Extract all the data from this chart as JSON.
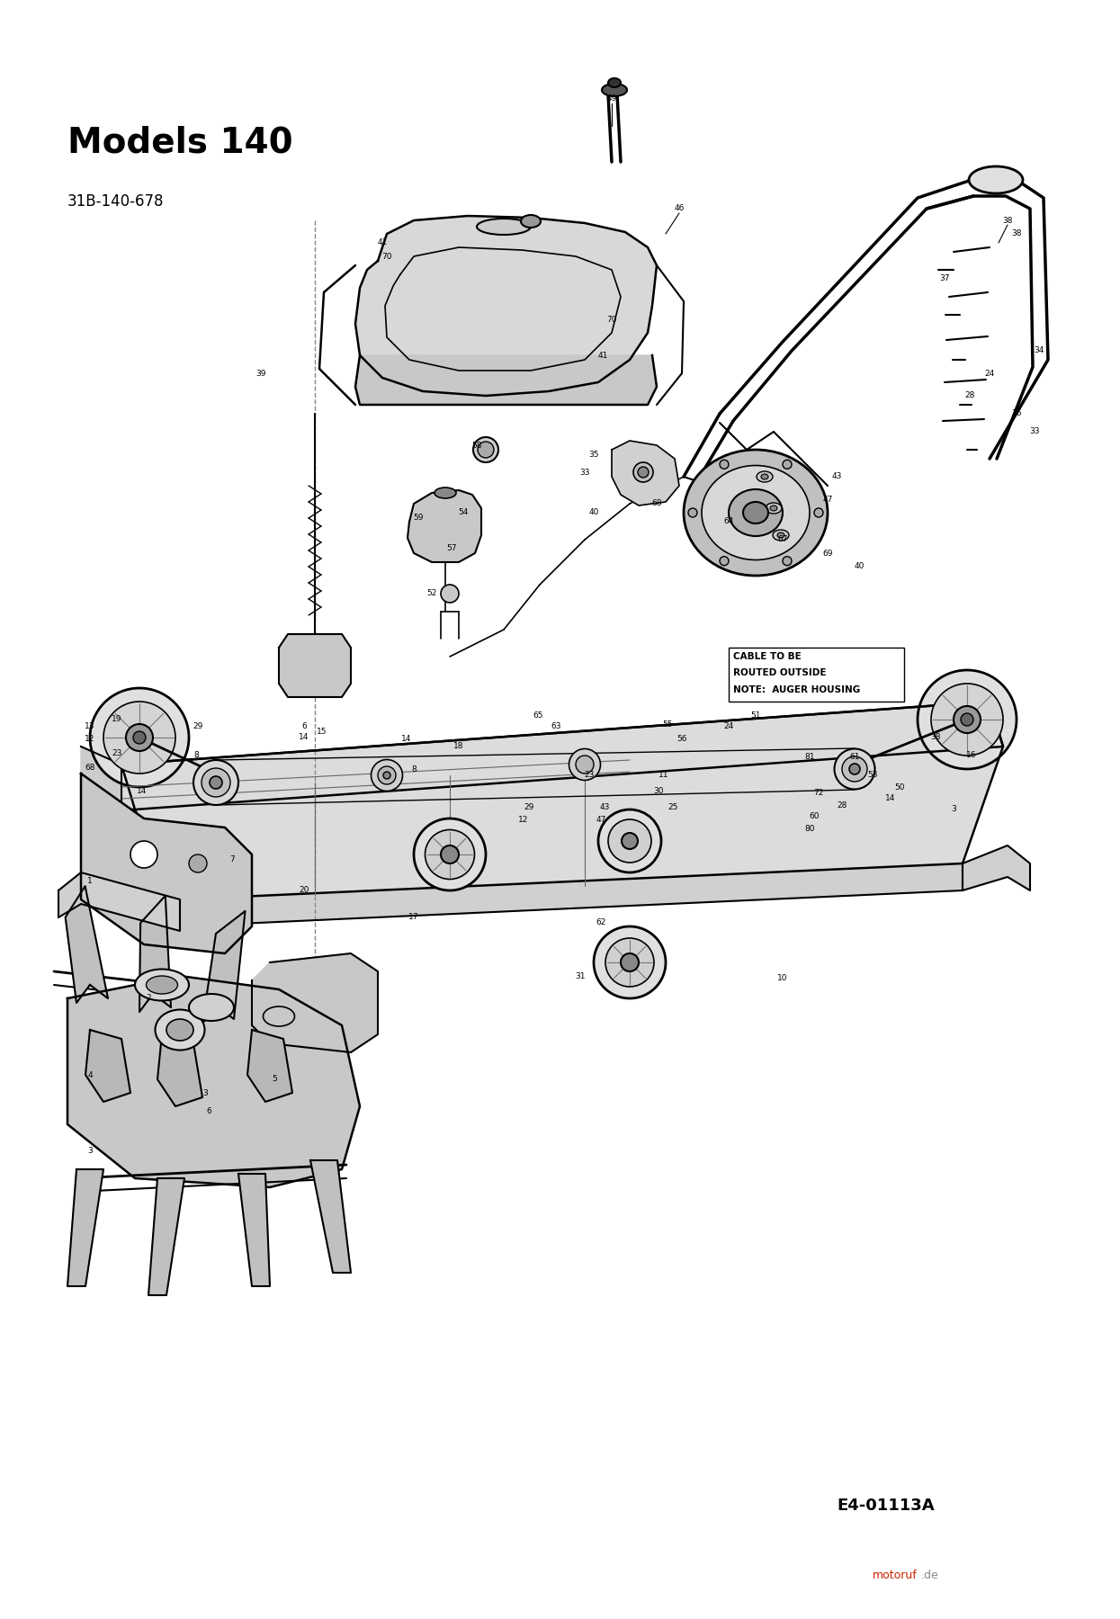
{
  "title": "Models 140",
  "subtitle": "31B-140-678",
  "diagram_code": "E4-01113A",
  "bg_color": "#ffffff",
  "title_fontsize": 28,
  "subtitle_fontsize": 12,
  "code_fontsize": 13,
  "note_lines": [
    "CABLE TO BE",
    "ROUTED OUTSIDE",
    "AUGER HOUSING"
  ],
  "watermark_letters": [
    {
      "char": "m",
      "color": "#cc0000"
    },
    {
      "char": "o",
      "color": "#ff6600"
    },
    {
      "char": "t",
      "color": "#009900"
    },
    {
      "char": "o",
      "color": "#0000cc"
    },
    {
      "char": "r",
      "color": "#cc0000"
    },
    {
      "char": "u",
      "color": "#ff6600"
    },
    {
      "char": "f",
      "color": "#009900"
    },
    {
      "char": ".",
      "color": "#000000"
    },
    {
      "char": "d",
      "color": "#0000cc"
    },
    {
      "char": "e",
      "color": "#cc0000"
    }
  ]
}
